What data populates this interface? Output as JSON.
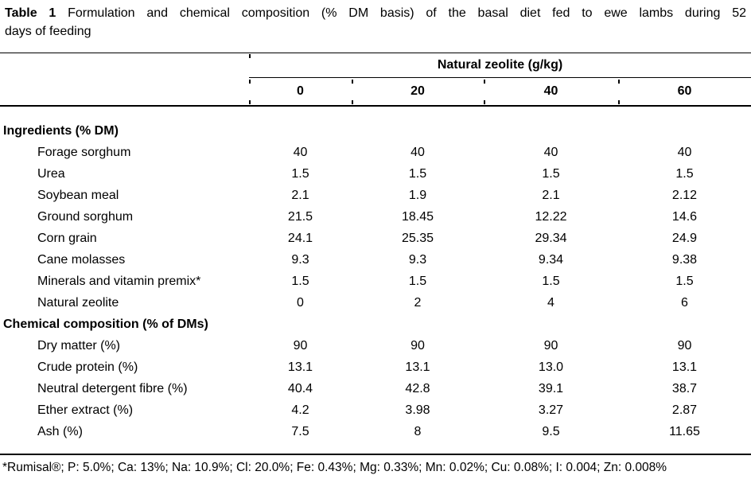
{
  "caption": {
    "label": "Table 1",
    "line1_rest": "Formulation and chemical composition (% DM basis) of the basal diet fed to ewe lambs during 52",
    "line2": "days of feeding"
  },
  "table": {
    "group_header": "Natural zeolite (g/kg)",
    "columns": [
      "0",
      "20",
      "40",
      "60"
    ],
    "sections": [
      {
        "header": "Ingredients (% DM)",
        "rows": [
          {
            "label": "Forage sorghum",
            "values": [
              "40",
              "40",
              "40",
              "40"
            ]
          },
          {
            "label": "Urea",
            "values": [
              "1.5",
              "1.5",
              "1.5",
              "1.5"
            ]
          },
          {
            "label": "Soybean meal",
            "values": [
              "2.1",
              "1.9",
              "2.1",
              "2.12"
            ]
          },
          {
            "label": "Ground sorghum",
            "values": [
              "21.5",
              "18.45",
              "12.22",
              "14.6"
            ]
          },
          {
            "label": "Corn grain",
            "values": [
              "24.1",
              "25.35",
              "29.34",
              "24.9"
            ]
          },
          {
            "label": "Cane molasses",
            "values": [
              "9.3",
              "9.3",
              "9.34",
              "9.38"
            ]
          },
          {
            "label": "Minerals and vitamin premix*",
            "values": [
              "1.5",
              "1.5",
              "1.5",
              "1.5"
            ]
          },
          {
            "label": "Natural zeolite",
            "values": [
              "0",
              "2",
              "4",
              "6"
            ]
          }
        ]
      },
      {
        "header": "Chemical composition (% of DMs)",
        "rows": [
          {
            "label": "Dry matter (%)",
            "values": [
              "90",
              "90",
              "90",
              "90"
            ]
          },
          {
            "label": "Crude protein (%)",
            "values": [
              "13.1",
              "13.1",
              "13.0",
              "13.1"
            ]
          },
          {
            "label": "Neutral detergent fibre (%)",
            "values": [
              "40.4",
              "42.8",
              "39.1",
              "38.7"
            ]
          },
          {
            "label": "Ether extract (%)",
            "values": [
              "4.2",
              "3.98",
              "3.27",
              "2.87"
            ]
          },
          {
            "label": "Ash (%)",
            "values": [
              "7.5",
              "8",
              "9.5",
              "11.65"
            ]
          }
        ]
      }
    ]
  },
  "footnote": "*Rumisal®; P: 5.0%; Ca: 13%; Na: 10.9%; Cl: 20.0%; Fe: 0.43%; Mg: 0.33%; Mn: 0.02%; Cu: 0.08%; I: 0.004; Zn: 0.008%"
}
